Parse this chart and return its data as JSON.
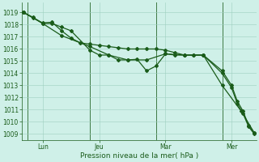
{
  "background_color": "#cff0e8",
  "grid_color": "#9ecfbf",
  "line_color": "#1a5c1a",
  "ylabel_ticks": [
    1009,
    1010,
    1011,
    1012,
    1013,
    1014,
    1015,
    1016,
    1017,
    1018,
    1019
  ],
  "ylim": [
    1008.5,
    1019.8
  ],
  "xlim": [
    -0.1,
    12.3
  ],
  "xlabel": "Pression niveau de la mer( hPa )",
  "xtick_labels": [
    "Lun",
    "Jeu",
    "Mar",
    "Mer"
  ],
  "xtick_positions": [
    1.0,
    4.0,
    7.5,
    11.0
  ],
  "vline_positions": [
    0.2,
    3.5,
    7.0,
    10.5
  ],
  "series1": [
    [
      0.0,
      1019.0
    ],
    [
      0.5,
      1018.6
    ],
    [
      1.0,
      1018.1
    ],
    [
      1.5,
      1018.1
    ],
    [
      2.0,
      1017.8
    ],
    [
      2.5,
      1017.5
    ],
    [
      3.5,
      1015.9
    ],
    [
      4.0,
      1015.5
    ],
    [
      4.5,
      1015.5
    ],
    [
      5.0,
      1015.1
    ],
    [
      5.5,
      1015.1
    ],
    [
      6.0,
      1015.15
    ],
    [
      6.5,
      1014.2
    ],
    [
      7.0,
      1014.6
    ],
    [
      7.5,
      1015.6
    ],
    [
      8.0,
      1015.5
    ],
    [
      8.5,
      1015.5
    ],
    [
      9.0,
      1015.5
    ],
    [
      9.5,
      1015.5
    ],
    [
      10.5,
      1014.2
    ],
    [
      11.0,
      1013.0
    ],
    [
      11.3,
      1011.7
    ],
    [
      11.6,
      1010.9
    ],
    [
      11.9,
      1009.7
    ],
    [
      12.2,
      1009.1
    ]
  ],
  "series2": [
    [
      0.0,
      1019.0
    ],
    [
      0.5,
      1018.55
    ],
    [
      1.0,
      1018.15
    ],
    [
      1.5,
      1018.2
    ],
    [
      2.0,
      1017.5
    ],
    [
      2.5,
      1016.9
    ],
    [
      3.0,
      1016.5
    ],
    [
      3.5,
      1016.4
    ],
    [
      4.0,
      1016.3
    ],
    [
      4.5,
      1016.2
    ],
    [
      5.0,
      1016.1
    ],
    [
      5.5,
      1016.0
    ],
    [
      6.0,
      1016.0
    ],
    [
      6.5,
      1016.0
    ],
    [
      7.0,
      1016.0
    ],
    [
      7.5,
      1015.9
    ],
    [
      8.0,
      1015.7
    ],
    [
      8.5,
      1015.5
    ],
    [
      9.0,
      1015.5
    ],
    [
      9.5,
      1015.5
    ],
    [
      10.5,
      1014.0
    ],
    [
      11.0,
      1012.8
    ],
    [
      11.3,
      1011.5
    ],
    [
      11.6,
      1010.7
    ],
    [
      11.9,
      1009.6
    ],
    [
      12.2,
      1009.0
    ]
  ],
  "series3": [
    [
      0.0,
      1019.0
    ],
    [
      1.0,
      1018.1
    ],
    [
      2.0,
      1017.1
    ],
    [
      3.5,
      1016.2
    ],
    [
      4.5,
      1015.5
    ],
    [
      5.5,
      1015.1
    ],
    [
      6.5,
      1015.1
    ],
    [
      7.5,
      1015.6
    ],
    [
      8.5,
      1015.5
    ],
    [
      9.5,
      1015.5
    ],
    [
      10.5,
      1013.0
    ],
    [
      11.5,
      1010.9
    ],
    [
      12.2,
      1009.1
    ]
  ],
  "marker": "D",
  "markersize": 2.0,
  "linewidth": 0.9,
  "tick_fontsize": 5.5,
  "xlabel_fontsize": 6.5
}
